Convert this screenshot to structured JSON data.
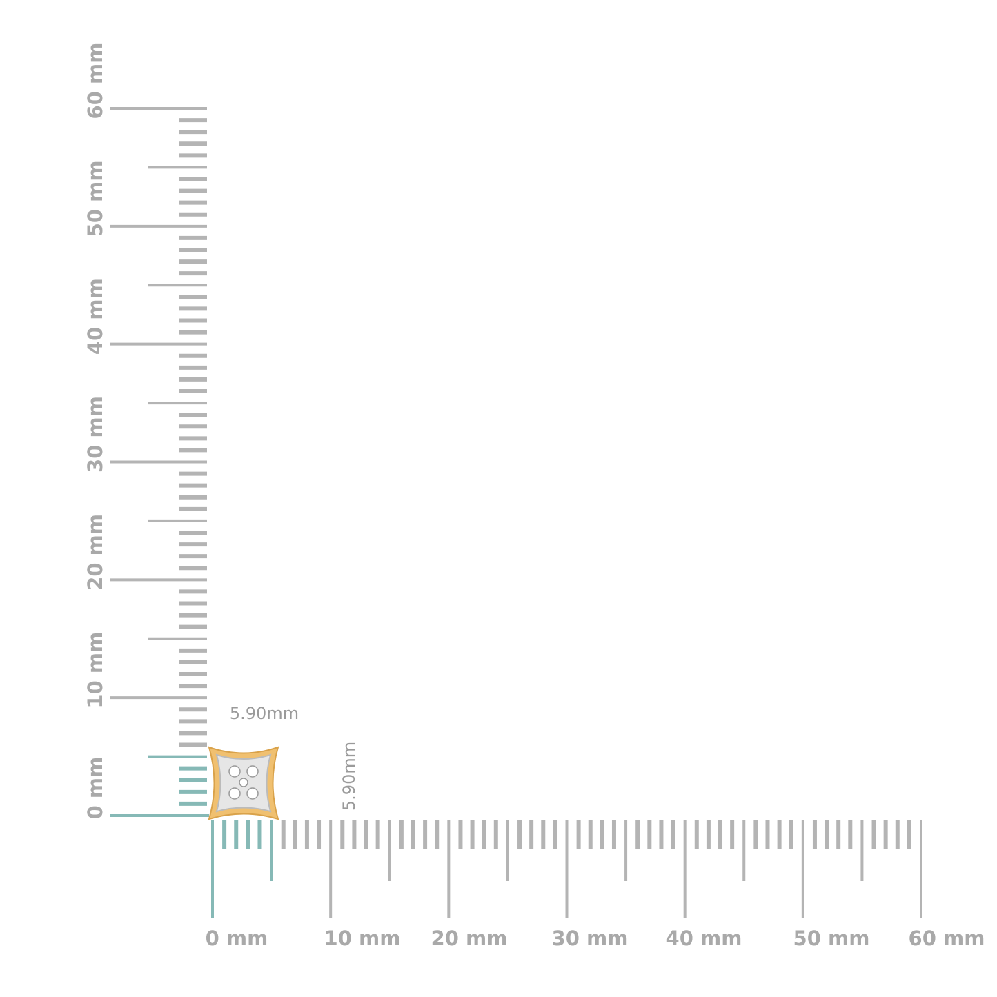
{
  "vertical_ruler": {
    "labels": [
      "0 mm",
      "10 mm",
      "20 mm",
      "30 mm",
      "40 mm",
      "50 mm",
      "60 mm"
    ]
  },
  "horizontal_ruler": {
    "labels": [
      "0 mm",
      "10 mm",
      "20 mm",
      "30 mm",
      "40 mm",
      "50 mm",
      "60 mm"
    ]
  },
  "dimensions": {
    "width": "5.90mm",
    "height": "5.90mm"
  }
}
